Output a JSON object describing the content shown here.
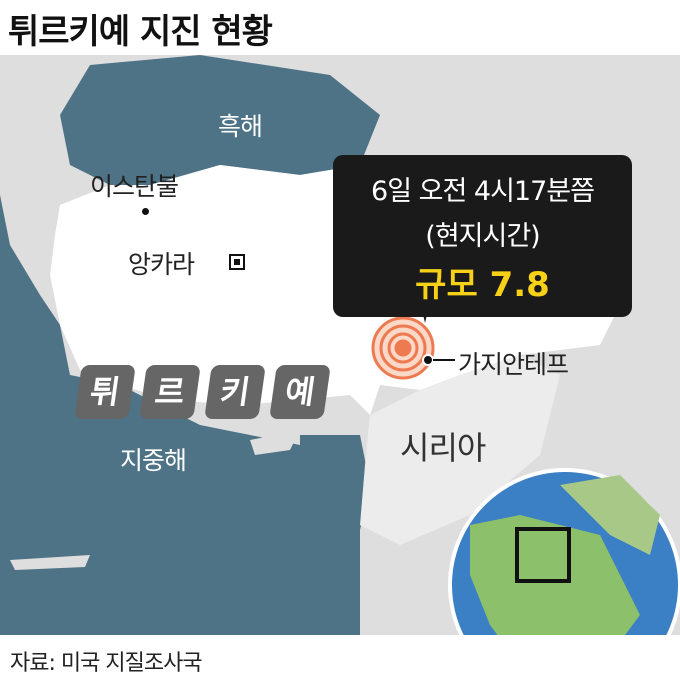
{
  "title": "튀르키예 지진 현황",
  "labels": {
    "black_sea": "흑해",
    "istanbul": "이스탄불",
    "ankara": "앙카라",
    "turkey_chars": [
      "튀",
      "르",
      "키",
      "예"
    ],
    "mediterranean": "지중해",
    "syria": "시리아",
    "gaziantep": "가지안테프"
  },
  "callout": {
    "time": "6일 오전 4시17분쯤",
    "note": "(현지시간)",
    "magnitude": "규모 7.8"
  },
  "colors": {
    "sea": "#4f7386",
    "land": "#dedede",
    "turkey": "#ffffff",
    "epicenter": "#ee7a52",
    "highlight": "#f7d117"
  },
  "footer": "자료: 미국 지질조사국"
}
